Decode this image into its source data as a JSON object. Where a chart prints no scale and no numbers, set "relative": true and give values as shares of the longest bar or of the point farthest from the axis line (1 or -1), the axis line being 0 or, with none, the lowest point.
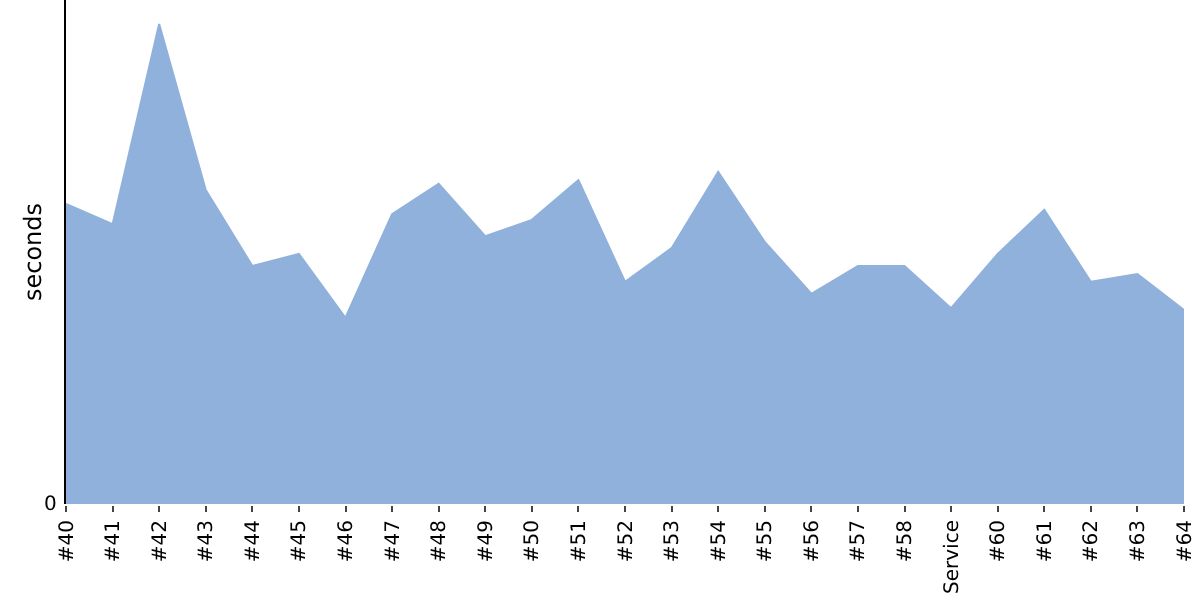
{
  "chart_data": {
    "type": "area",
    "relative": true,
    "ylabel": "seconds",
    "categories": [
      "#40",
      "#41",
      "#42",
      "#43",
      "#44",
      "#45",
      "#46",
      "#47",
      "#48",
      "#49",
      "#50",
      "#51",
      "#52",
      "#53",
      "#54",
      "#55",
      "#56",
      "#57",
      "#58",
      "Service",
      "#60",
      "#61",
      "#62",
      "#63",
      "#64"
    ],
    "values": [
      0.625,
      0.583,
      1,
      0.654,
      0.496,
      0.521,
      0.388,
      0.604,
      0.667,
      0.558,
      0.592,
      0.675,
      0.463,
      0.533,
      0.692,
      0.546,
      0.438,
      0.496,
      0.496,
      0.408,
      0.521,
      0.613,
      0.463,
      0.479,
      0.404
    ],
    "color": "#90b1db",
    "annotations": [
      "0"
    ]
  }
}
